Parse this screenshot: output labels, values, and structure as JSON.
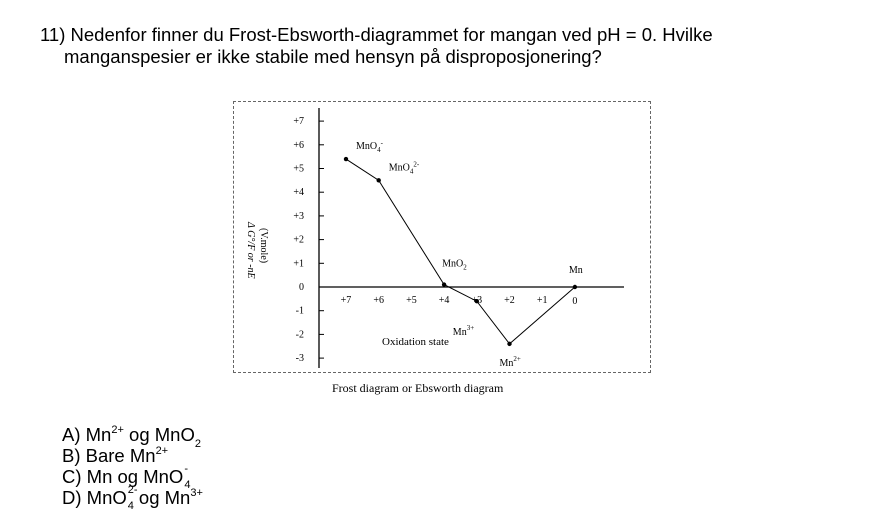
{
  "question": {
    "line1": "11) Nedenfor finner du Frost-Ebsworth-diagrammet for mangan ved pH = 0. Hvilke",
    "line2": "manganspesier er ikke stabile med hensyn på disproposjonering?"
  },
  "figure": {
    "caption": "Frost diagram or Ebsworth diagram",
    "xlabel": "Oxidation state",
    "ylabel_line1": "Δ G°/F or -nE",
    "ylabel_line2": "(V.mole)"
  },
  "chart_data": {
    "type": "line",
    "title": "Frost diagram or Ebsworth diagram",
    "xlabel": "Oxidation state",
    "ylabel": "Δ G°/F or -nE (V.mole)",
    "x_ticks": [
      "+7",
      "+6",
      "+5",
      "+4",
      "+3",
      "+2",
      "+1",
      "0"
    ],
    "y_ticks": [
      "+7",
      "+6",
      "+5",
      "+4",
      "+3",
      "+2",
      "+1",
      "0",
      "-1",
      "-2",
      "-3"
    ],
    "xlim": [
      7,
      0
    ],
    "ylim": [
      -3,
      7
    ],
    "series": [
      {
        "points": [
          {
            "species": "MnO4",
            "charge": "-",
            "x": 7,
            "y": 5.4
          },
          {
            "species": "MnO4",
            "charge": "2-",
            "x": 6,
            "y": 4.5
          },
          {
            "species": "MnO2",
            "charge": "",
            "x": 4,
            "y": 0.1
          },
          {
            "species": "Mn",
            "charge": "3+",
            "x": 3,
            "y": -0.6
          },
          {
            "species": "Mn",
            "charge": "2+",
            "x": 2,
            "y": -2.4
          },
          {
            "species": "Mn",
            "charge": "",
            "x": 0,
            "y": 0
          }
        ]
      }
    ]
  },
  "answers": [
    {
      "letter": "A)",
      "text": "Mn",
      "sup": "2+",
      "mid": " og MnO",
      "sub": "2",
      "end": ""
    },
    {
      "letter": "B)",
      "text": "Bare Mn",
      "sup": "2+",
      "mid": "",
      "sub": "",
      "end": ""
    },
    {
      "letter": "C)",
      "text": "Mn og MnO",
      "sub": "4",
      "sup": "-",
      "mid": "",
      "end": ""
    },
    {
      "letter": "D)",
      "text": "MnO",
      "sub": "4",
      "sup": "2-",
      "mid": " og Mn",
      "end": "3+"
    }
  ]
}
